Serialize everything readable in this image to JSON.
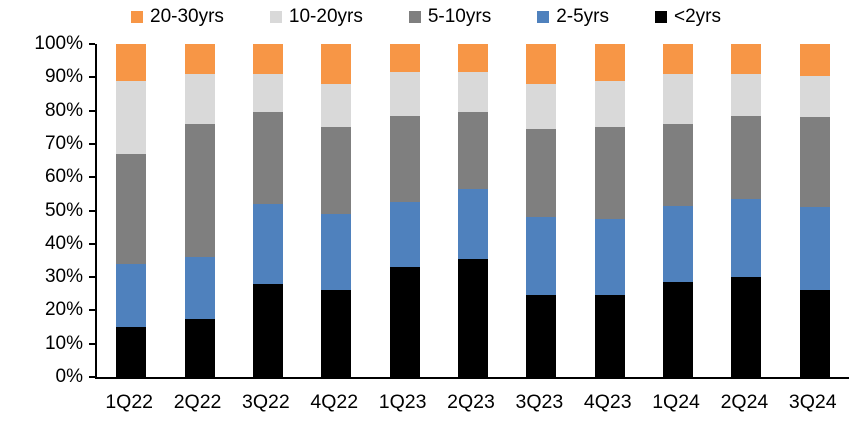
{
  "chart_data": {
    "type": "bar",
    "variant": "stacked-100-percent",
    "title": "",
    "xlabel": "",
    "ylabel": "",
    "ylim": [
      0,
      100
    ],
    "grid": false,
    "legend_position": "top",
    "categories": [
      "1Q22",
      "2Q22",
      "3Q22",
      "4Q22",
      "1Q23",
      "2Q23",
      "3Q23",
      "4Q23",
      "1Q24",
      "2Q24",
      "3Q24"
    ],
    "series": [
      {
        "name": "<2yrs",
        "color": "#000000",
        "values": [
          15,
          17.5,
          28,
          26,
          33,
          35.5,
          24.5,
          24.5,
          28.5,
          30,
          26
        ]
      },
      {
        "name": "2-5yrs",
        "color": "#4F81BD",
        "values": [
          19,
          18.5,
          24,
          23,
          19.5,
          21,
          23.5,
          23,
          23,
          23.5,
          25
        ]
      },
      {
        "name": "5-10yrs",
        "color": "#7F7F7F",
        "values": [
          33,
          40,
          27.5,
          26,
          26,
          23,
          26.5,
          27.5,
          24.5,
          25,
          27
        ]
      },
      {
        "name": "10-20yrs",
        "color": "#D9D9D9",
        "values": [
          22,
          15,
          11.5,
          13,
          13,
          12,
          13.5,
          14,
          15,
          12.5,
          12.5
        ]
      },
      {
        "name": "20-30yrs",
        "color": "#F79646",
        "values": [
          11,
          9,
          9,
          12,
          8.5,
          8.5,
          12,
          11,
          9,
          9,
          9.5
        ]
      }
    ],
    "legend_order": [
      "20-30yrs",
      "10-20yrs",
      "5-10yrs",
      "2-5yrs",
      "<2yrs"
    ],
    "y_ticks": [
      "100%",
      "90%",
      "80%",
      "70%",
      "60%",
      "50%",
      "40%",
      "30%",
      "20%",
      "10%",
      "0%"
    ],
    "axis_color": "#000000",
    "text_color": "#000000"
  }
}
